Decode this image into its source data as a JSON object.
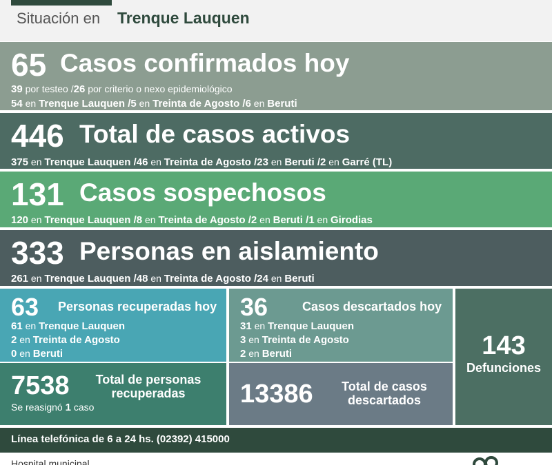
{
  "header": {
    "label": "Situación en",
    "city": "Trenque Lauquen"
  },
  "confirmed": {
    "number": "65",
    "title": "Casos confirmados hoy",
    "line1": [
      {
        "n": "39",
        "t": " por testeo  /"
      },
      {
        "n": "26",
        "t": " por criterio o nexo epidemiológico"
      }
    ],
    "line2": [
      {
        "n": "54",
        "w": " en ",
        "p": "Trenque Lauquen  /"
      },
      {
        "n": "5",
        "w": " en ",
        "p": "Treinta de Agosto  /"
      },
      {
        "n": "6",
        "w": " en ",
        "p": "Beruti"
      }
    ]
  },
  "active": {
    "number": "446",
    "title": "Total de casos activos",
    "line": [
      {
        "n": "375",
        "w": " en ",
        "p": "Trenque Lauquen  /"
      },
      {
        "n": "46",
        "w": " en ",
        "p": "Treinta de Agosto  /"
      },
      {
        "n": "23",
        "w": " en ",
        "p": "Beruti  /"
      },
      {
        "n": "2",
        "w": " en ",
        "p": "Garré (TL)"
      }
    ]
  },
  "suspected": {
    "number": "131",
    "title": "Casos sospechosos",
    "line": [
      {
        "n": "120",
        "w": " en ",
        "p": "Trenque Lauquen  /"
      },
      {
        "n": "8",
        "w": " en ",
        "p": "Treinta de Agosto  /"
      },
      {
        "n": "2",
        "w": " en ",
        "p": "Beruti  /"
      },
      {
        "n": "1",
        "w": " en ",
        "p": "Girodias"
      }
    ]
  },
  "isolation": {
    "number": "333",
    "title": "Personas en aislamiento",
    "line": [
      {
        "n": "261",
        "w": " en ",
        "p": "Trenque Lauquen  /"
      },
      {
        "n": "48",
        "w": " en ",
        "p": "Treinta de Agosto  /"
      },
      {
        "n": "24",
        "w": " en ",
        "p": "Beruti"
      }
    ]
  },
  "recovered_today": {
    "number": "63",
    "title": "Personas recuperadas hoy",
    "lines": [
      {
        "n": "61",
        "w": " en ",
        "p": "Trenque Lauquen"
      },
      {
        "n": "2",
        "w": " en ",
        "p": "Treinta de Agosto"
      },
      {
        "n": "0",
        "w": " en ",
        "p": "Beruti"
      }
    ]
  },
  "recovered_total": {
    "number": "7538",
    "title1": "Total de personas",
    "title2": "recuperadas",
    "note_a": "Se reasignó ",
    "note_n": "1",
    "note_b": " caso"
  },
  "discarded_today": {
    "number": "36",
    "title": "Casos descartados hoy",
    "lines": [
      {
        "n": "31",
        "w": " en ",
        "p": "Trenque Lauquen"
      },
      {
        "n": "3",
        "w": " en ",
        "p": "Treinta de Agosto"
      },
      {
        "n": "2",
        "w": " en ",
        "p": "Beruti"
      }
    ]
  },
  "discarded_total": {
    "number": "13386",
    "title1": "Total de casos",
    "title2": "descartados"
  },
  "deaths": {
    "number": "143",
    "title": "Defunciones"
  },
  "phone": "Línea telefónica de 6 a 24 hs. (02392) 415000",
  "footer": "Hospital municipal",
  "colors": {
    "header_green": "#2f4a3d",
    "confirmed": "#8c9d91",
    "active": "#4d6b63",
    "suspected": "#5aa976",
    "isolation": "#4d5d5f",
    "recovered_today": "#49a6b4",
    "recovered_total": "#3d7f6e",
    "discarded_today": "#6c9a91",
    "discarded_total": "#6b7b86",
    "deaths": "#4c6f63"
  }
}
